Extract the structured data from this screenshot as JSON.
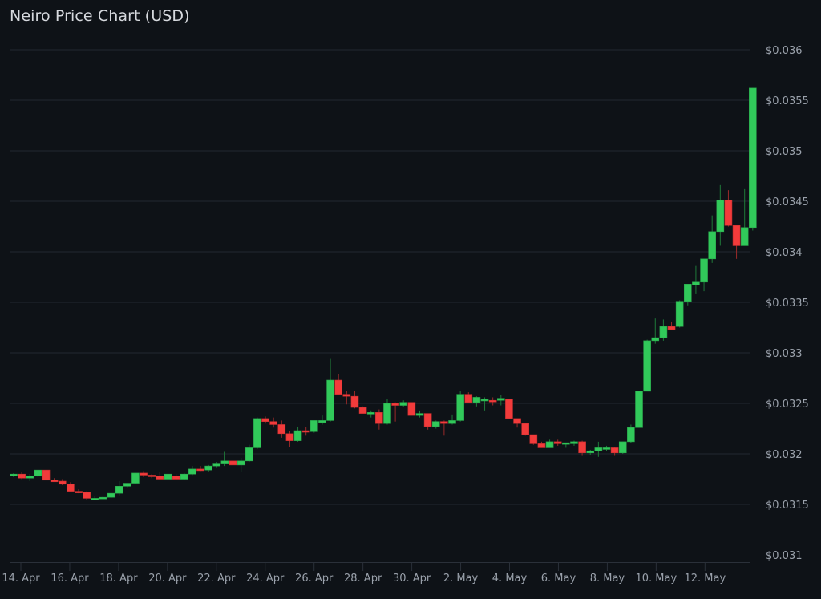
{
  "title": "Neiro Price Chart (USD)",
  "colors": {
    "background": "#0e1217",
    "up": "#31c95a",
    "down": "#f23b3b",
    "grid": "#232830",
    "text": "#9aa1ab"
  },
  "chart_data": {
    "type": "candlestick",
    "title": "Neiro Price Chart (USD)",
    "xlabel": "",
    "ylabel": "",
    "ylim": [
      0.031,
      0.036
    ],
    "grid": true,
    "y_axis_position": "right",
    "y_ticks": [
      "$0.036",
      "$0.0355",
      "$0.035",
      "$0.0345",
      "$0.034",
      "$0.0335",
      "$0.033",
      "$0.0325",
      "$0.032",
      "$0.0315",
      "$0.031"
    ],
    "y_tick_values": [
      0.036,
      0.0355,
      0.035,
      0.0345,
      0.034,
      0.0335,
      0.033,
      0.0325,
      0.032,
      0.0315,
      0.031
    ],
    "x_ticks": [
      "14. Apr",
      "16. Apr",
      "18. Apr",
      "20. Apr",
      "22. Apr",
      "24. Apr",
      "26. Apr",
      "28. Apr",
      "30. Apr",
      "2. May",
      "4. May",
      "6. May",
      "8. May",
      "10. May",
      "12. May"
    ],
    "candles": [
      [
        0.03179,
        0.03181,
        0.03177,
        0.0318
      ],
      [
        0.0318,
        0.03182,
        0.03175,
        0.03176
      ],
      [
        0.03176,
        0.0318,
        0.03173,
        0.03178
      ],
      [
        0.03178,
        0.03184,
        0.03177,
        0.03184
      ],
      [
        0.03184,
        0.03184,
        0.03174,
        0.03174
      ],
      [
        0.03174,
        0.03176,
        0.03173,
        0.03173
      ],
      [
        0.03173,
        0.03175,
        0.03169,
        0.0317
      ],
      [
        0.0317,
        0.03172,
        0.03163,
        0.03163
      ],
      [
        0.03163,
        0.03165,
        0.03161,
        0.03162
      ],
      [
        0.03162,
        0.03163,
        0.03154,
        0.03156
      ],
      [
        0.03156,
        0.03158,
        0.03154,
        0.03156
      ],
      [
        0.03156,
        0.03158,
        0.03155,
        0.03157
      ],
      [
        0.03157,
        0.03161,
        0.03156,
        0.03161
      ],
      [
        0.03161,
        0.03173,
        0.03159,
        0.03168
      ],
      [
        0.03168,
        0.03171,
        0.03167,
        0.03171
      ],
      [
        0.03171,
        0.03181,
        0.0317,
        0.03181
      ],
      [
        0.03181,
        0.03183,
        0.03177,
        0.03179
      ],
      [
        0.03179,
        0.0318,
        0.03176,
        0.03178
      ],
      [
        0.03178,
        0.03182,
        0.03174,
        0.03175
      ],
      [
        0.03175,
        0.0318,
        0.03174,
        0.0318
      ],
      [
        0.03178,
        0.0318,
        0.03174,
        0.03175
      ],
      [
        0.03175,
        0.03181,
        0.03174,
        0.0318
      ],
      [
        0.0318,
        0.03188,
        0.03179,
        0.03185
      ],
      [
        0.03185,
        0.03188,
        0.03183,
        0.03184
      ],
      [
        0.03184,
        0.03189,
        0.03182,
        0.03188
      ],
      [
        0.03188,
        0.03192,
        0.03186,
        0.0319
      ],
      [
        0.0319,
        0.03202,
        0.03188,
        0.03193
      ],
      [
        0.03193,
        0.03194,
        0.03189,
        0.03189
      ],
      [
        0.03189,
        0.03196,
        0.03182,
        0.03193
      ],
      [
        0.03193,
        0.03209,
        0.03192,
        0.03206
      ],
      [
        0.03206,
        0.03236,
        0.03205,
        0.03235
      ],
      [
        0.03235,
        0.03237,
        0.0323,
        0.03232
      ],
      [
        0.03232,
        0.03236,
        0.03226,
        0.03229
      ],
      [
        0.03229,
        0.03233,
        0.03216,
        0.0322
      ],
      [
        0.0322,
        0.03223,
        0.03207,
        0.03213
      ],
      [
        0.03213,
        0.03227,
        0.03212,
        0.03223
      ],
      [
        0.03223,
        0.03227,
        0.03218,
        0.03222
      ],
      [
        0.03222,
        0.03232,
        0.03221,
        0.03233
      ],
      [
        0.03231,
        0.03238,
        0.03229,
        0.03233
      ],
      [
        0.03233,
        0.03294,
        0.03232,
        0.03273
      ],
      [
        0.03273,
        0.03279,
        0.03259,
        0.03259
      ],
      [
        0.03259,
        0.03262,
        0.03249,
        0.03257
      ],
      [
        0.03257,
        0.03262,
        0.03245,
        0.03246
      ],
      [
        0.03246,
        0.03247,
        0.0324,
        0.0324
      ],
      [
        0.0324,
        0.03243,
        0.03236,
        0.03241
      ],
      [
        0.03241,
        0.03244,
        0.03224,
        0.0323
      ],
      [
        0.0323,
        0.03254,
        0.03229,
        0.0325
      ],
      [
        0.0325,
        0.03251,
        0.03232,
        0.03248
      ],
      [
        0.03248,
        0.03253,
        0.03247,
        0.03251
      ],
      [
        0.03251,
        0.03251,
        0.03238,
        0.03238
      ],
      [
        0.03238,
        0.03243,
        0.03236,
        0.0324
      ],
      [
        0.0324,
        0.0324,
        0.03224,
        0.03227
      ],
      [
        0.03227,
        0.03233,
        0.03225,
        0.03232
      ],
      [
        0.03232,
        0.03233,
        0.03218,
        0.0323
      ],
      [
        0.0323,
        0.03239,
        0.03229,
        0.03233
      ],
      [
        0.03233,
        0.03262,
        0.03232,
        0.03259
      ],
      [
        0.03259,
        0.03261,
        0.03251,
        0.03251
      ],
      [
        0.03251,
        0.03257,
        0.03247,
        0.03256
      ],
      [
        0.03253,
        0.03256,
        0.03243,
        0.03254
      ],
      [
        0.03253,
        0.03256,
        0.03248,
        0.03252
      ],
      [
        0.03253,
        0.03258,
        0.03248,
        0.03255
      ],
      [
        0.03254,
        0.03254,
        0.03235,
        0.03235
      ],
      [
        0.03235,
        0.03235,
        0.03226,
        0.0323
      ],
      [
        0.0323,
        0.0323,
        0.03218,
        0.03219
      ],
      [
        0.03219,
        0.03219,
        0.03209,
        0.0321
      ],
      [
        0.0321,
        0.03212,
        0.03206,
        0.03206
      ],
      [
        0.03206,
        0.03214,
        0.03206,
        0.03212
      ],
      [
        0.03212,
        0.03214,
        0.03208,
        0.0321
      ],
      [
        0.0321,
        0.03211,
        0.03206,
        0.03211
      ],
      [
        0.0321,
        0.03213,
        0.03208,
        0.03212
      ],
      [
        0.03212,
        0.03213,
        0.03198,
        0.03201
      ],
      [
        0.03201,
        0.03204,
        0.03199,
        0.03203
      ],
      [
        0.03203,
        0.03212,
        0.03197,
        0.03206
      ],
      [
        0.03205,
        0.03208,
        0.03203,
        0.03206
      ],
      [
        0.03206,
        0.03207,
        0.03198,
        0.03201
      ],
      [
        0.03201,
        0.03212,
        0.032,
        0.03212
      ],
      [
        0.03212,
        0.03229,
        0.03211,
        0.03226
      ],
      [
        0.03226,
        0.03253,
        0.03226,
        0.03262
      ],
      [
        0.03262,
        0.03313,
        0.03262,
        0.03312
      ],
      [
        0.03312,
        0.03334,
        0.03309,
        0.03315
      ],
      [
        0.03315,
        0.03333,
        0.03312,
        0.03326
      ],
      [
        0.03326,
        0.03331,
        0.03325,
        0.03323
      ],
      [
        0.03326,
        0.03352,
        0.03325,
        0.03351
      ],
      [
        0.03351,
        0.03368,
        0.03347,
        0.03368
      ],
      [
        0.03367,
        0.03386,
        0.03358,
        0.0337
      ],
      [
        0.0337,
        0.03391,
        0.03361,
        0.03393
      ],
      [
        0.03393,
        0.03436,
        0.03389,
        0.0342
      ],
      [
        0.0342,
        0.03466,
        0.03406,
        0.03451
      ],
      [
        0.03451,
        0.03461,
        0.03425,
        0.03426
      ],
      [
        0.03426,
        0.03426,
        0.03393,
        0.03406
      ],
      [
        0.03406,
        0.03462,
        0.03406,
        0.03424
      ],
      [
        0.03424,
        0.03562,
        0.03421,
        0.03562
      ]
    ]
  }
}
